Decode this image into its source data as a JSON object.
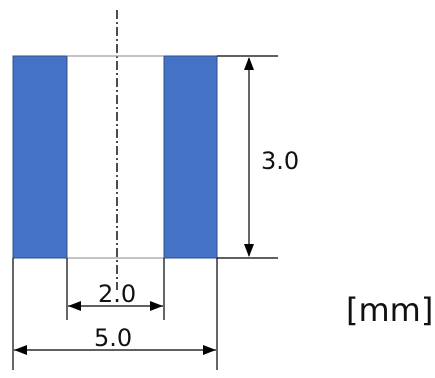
{
  "diagram": {
    "dimensions": {
      "height": "3.0",
      "inner_width": "2.0",
      "outer_width": "5.0"
    },
    "unit": "[mm]",
    "colors": {
      "fill": "#4472c4",
      "line": "#000000",
      "background": "#ffffff"
    }
  }
}
